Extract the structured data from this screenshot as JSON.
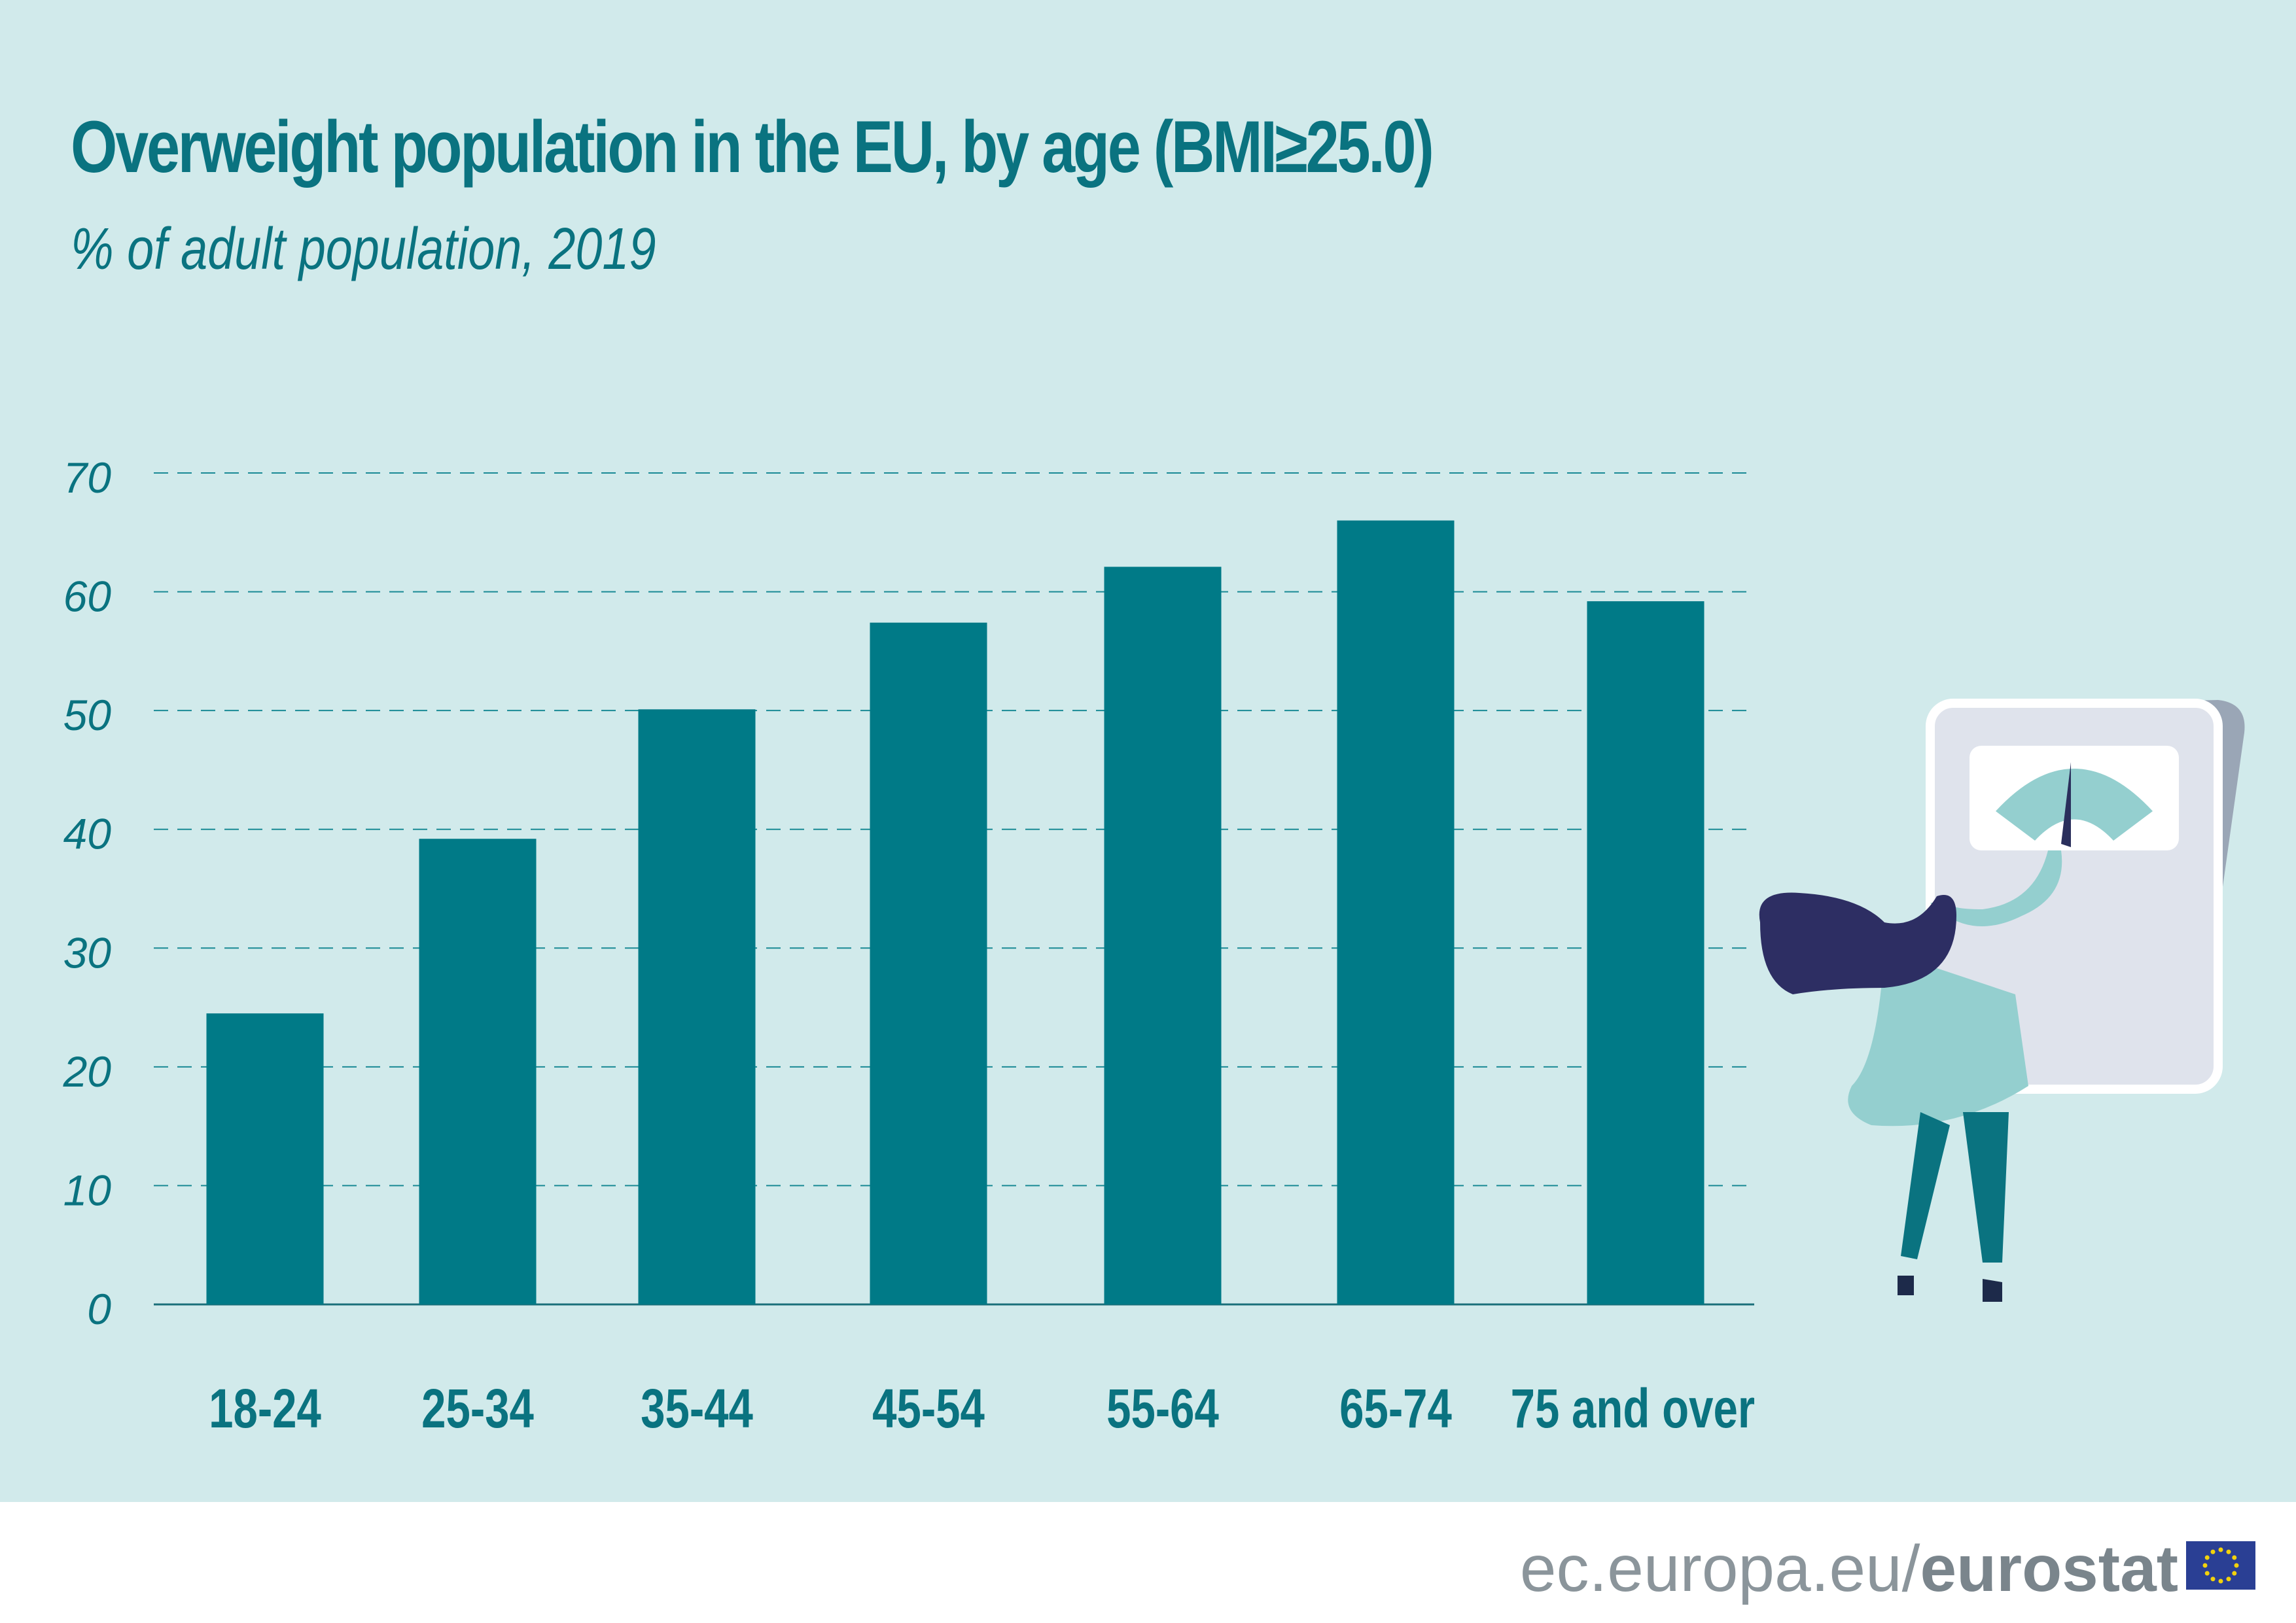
{
  "title": "Overweight population in the EU, by age (BMI≥25.0)",
  "subtitle": "% of adult population, 2019",
  "colors": {
    "background": "#d1eaeb",
    "bar": "#007a87",
    "text": "#0a7380"
  },
  "chart_data": {
    "type": "bar",
    "title": "Overweight population in the EU, by age (BMI≥25.0)",
    "subtitle": "% of adult population, 2019",
    "categories": [
      "18-24",
      "25-34",
      "35-44",
      "45-54",
      "55-64",
      "65-74",
      "75 and over"
    ],
    "values": [
      24.5,
      39.2,
      50.1,
      57.4,
      62.1,
      66.0,
      59.2
    ],
    "ylim": [
      0,
      70
    ],
    "yticks": [
      "0",
      "10",
      "20",
      "30",
      "40",
      "50",
      "60",
      "70"
    ],
    "grid": true,
    "legend": "none"
  },
  "footer": {
    "site": "ec.europa.eu/",
    "brand": "eurostat",
    "flag_icon": "eu-flag-icon"
  }
}
